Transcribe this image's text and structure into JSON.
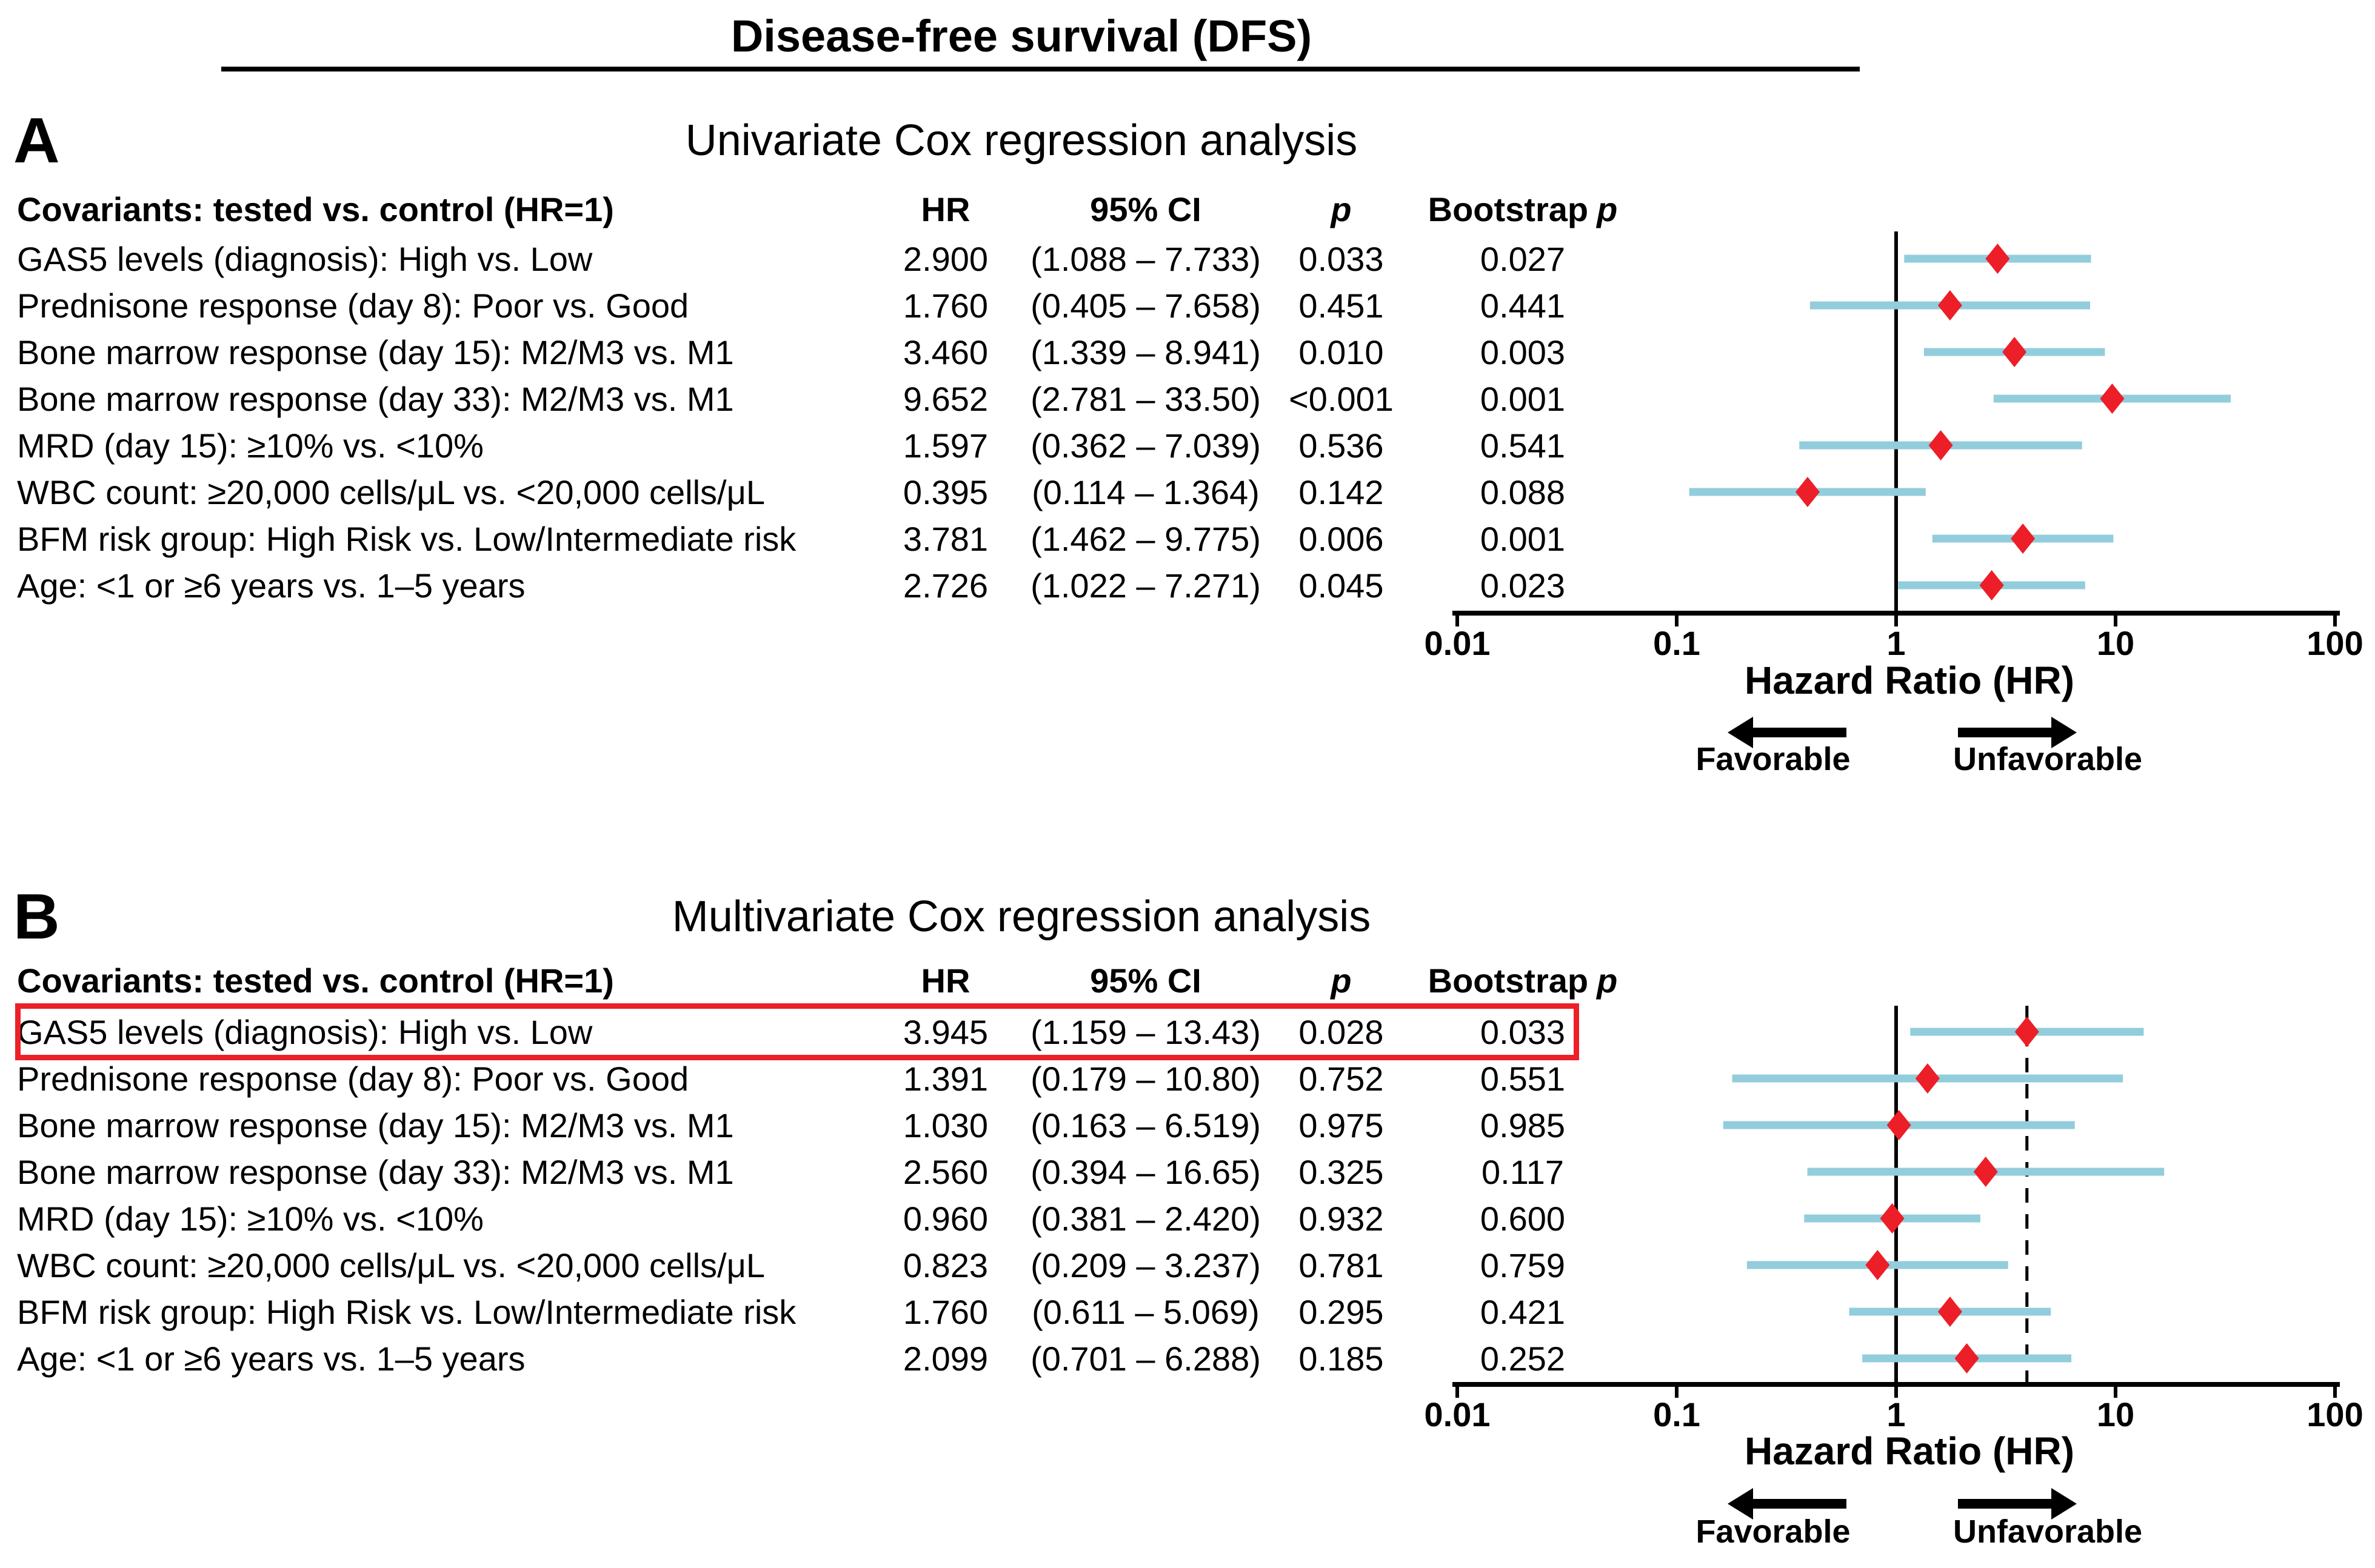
{
  "figure_title": "Disease-free survival (DFS)",
  "table_columns": {
    "covariate": "Covariants: tested vs. control (HR=1)",
    "hr": "HR",
    "ci": "95% CI",
    "p": "p",
    "bootstrap": "Bootstrap",
    "bootstrap_p": "p"
  },
  "axis": {
    "tick_labels": [
      "0.01",
      "0.1",
      "1",
      "10",
      "100"
    ],
    "title": "Hazard Ratio (HR)",
    "favorable_label": "Favorable",
    "unfavorable_label": "Unfavorable"
  },
  "colors": {
    "marker": "#EC1E27",
    "ci_bar": "#92CDDC",
    "highlight_box": "#EC2027",
    "reference_line": "#000000",
    "axis": "#000000",
    "text": "#000000",
    "background": "#FFFFFF"
  },
  "panels": [
    {
      "label": "A",
      "heading": "Univariate Cox regression analysis",
      "highlighted_row_index": null,
      "rows": [
        {
          "covariate": "GAS5 levels (diagnosis): High vs. Low",
          "hr": "2.900",
          "ci": "(1.088 – 7.733)",
          "p": "0.033",
          "bootstrap_p": "0.027"
        },
        {
          "covariate": "Prednisone response (day 8): Poor vs. Good",
          "hr": "1.760",
          "ci": "(0.405 – 7.658)",
          "p": "0.451",
          "bootstrap_p": "0.441"
        },
        {
          "covariate": "Bone marrow response (day 15): M2/M3 vs. M1",
          "hr": "3.460",
          "ci": "(1.339 – 8.941)",
          "p": "0.010",
          "bootstrap_p": "0.003"
        },
        {
          "covariate": "Bone marrow response (day 33): M2/M3 vs. M1",
          "hr": "9.652",
          "ci": "(2.781 – 33.50)",
          "p": "<0.001",
          "bootstrap_p": "0.001"
        },
        {
          "covariate": "MRD (day 15): ≥10% vs. <10%",
          "hr": "1.597",
          "ci": "(0.362 – 7.039)",
          "p": "0.536",
          "bootstrap_p": "0.541"
        },
        {
          "covariate": "WBC count: ≥20,000 cells/μL vs. <20,000 cells/μL",
          "hr": "0.395",
          "ci": "(0.114 – 1.364)",
          "p": "0.142",
          "bootstrap_p": "0.088"
        },
        {
          "covariate": "BFM risk group: High Risk vs. Low/Intermediate risk",
          "hr": "3.781",
          "ci": "(1.462 – 9.775)",
          "p": "0.006",
          "bootstrap_p": "0.001"
        },
        {
          "covariate": "Age: <1 or ≥6 years vs. 1–5 years",
          "hr": "2.726",
          "ci": "(1.022 – 7.271)",
          "p": "0.045",
          "bootstrap_p": "0.023"
        }
      ]
    },
    {
      "label": "B",
      "heading": "Multivariate Cox regression analysis",
      "highlighted_row_index": 0,
      "rows": [
        {
          "covariate": "GAS5 levels (diagnosis): High vs. Low",
          "hr": "3.945",
          "ci": "(1.159 – 13.43)",
          "p": "0.028",
          "bootstrap_p": "0.033"
        },
        {
          "covariate": "Prednisone response (day 8): Poor vs. Good",
          "hr": "1.391",
          "ci": "(0.179 – 10.80)",
          "p": "0.752",
          "bootstrap_p": "0.551"
        },
        {
          "covariate": "Bone marrow response (day 15): M2/M3 vs. M1",
          "hr": "1.030",
          "ci": "(0.163 – 6.519)",
          "p": "0.975",
          "bootstrap_p": "0.985"
        },
        {
          "covariate": "Bone marrow response (day 33): M2/M3 vs. M1",
          "hr": "2.560",
          "ci": "(0.394 – 16.65)",
          "p": "0.325",
          "bootstrap_p": "0.117"
        },
        {
          "covariate": "MRD (day 15): ≥10% vs. <10%",
          "hr": "0.960",
          "ci": "(0.381 – 2.420)",
          "p": "0.932",
          "bootstrap_p": "0.600"
        },
        {
          "covariate": "WBC count: ≥20,000 cells/μL vs. <20,000 cells/μL",
          "hr": "0.823",
          "ci": "(0.209 – 3.237)",
          "p": "0.781",
          "bootstrap_p": "0.759"
        },
        {
          "covariate": "BFM risk group: High Risk vs. Low/Intermediate risk",
          "hr": "1.760",
          "ci": "(0.611 – 5.069)",
          "p": "0.295",
          "bootstrap_p": "0.421"
        },
        {
          "covariate": "Age: <1 or ≥6 years vs. 1–5 years",
          "hr": "2.099",
          "ci": "(0.701 – 6.288)",
          "p": "0.185",
          "bootstrap_p": "0.252"
        }
      ]
    }
  ],
  "chart_data": [
    {
      "type": "scatter",
      "subtype": "forest-plot",
      "title": "Univariate Cox regression analysis",
      "xlabel": "Hazard Ratio (HR)",
      "x_scale": "log",
      "xlim": [
        0.01,
        100
      ],
      "x_ticks": [
        0.01,
        0.1,
        1,
        10,
        100
      ],
      "grid": false,
      "reference_lines": [
        {
          "x": 1,
          "style": "solid"
        }
      ],
      "direction_annotations": [
        {
          "label": "Favorable",
          "side": "left"
        },
        {
          "label": "Unfavorable",
          "side": "right"
        }
      ],
      "categories": [
        "GAS5 levels (diagnosis): High vs. Low",
        "Prednisone response (day 8): Poor vs. Good",
        "Bone marrow response (day 15): M2/M3 vs. M1",
        "Bone marrow response (day 33): M2/M3 vs. M1",
        "MRD (day 15): ≥10% vs. <10%",
        "WBC count: ≥20,000 cells/μL vs. <20,000 cells/μL",
        "BFM risk group: High Risk vs. Low/Intermediate risk",
        "Age: <1 or ≥6 years vs. 1–5 years"
      ],
      "series": [
        {
          "name": "HR",
          "values": [
            2.9,
            1.76,
            3.46,
            9.652,
            1.597,
            0.395,
            3.781,
            2.726
          ]
        },
        {
          "name": "CI_lower",
          "values": [
            1.088,
            0.405,
            1.339,
            2.781,
            0.362,
            0.114,
            1.462,
            1.022
          ]
        },
        {
          "name": "CI_upper",
          "values": [
            7.733,
            7.658,
            8.941,
            33.5,
            7.039,
            1.364,
            9.775,
            7.271
          ]
        }
      ],
      "p_values": [
        "0.033",
        "0.451",
        "0.010",
        "<0.001",
        "0.536",
        "0.142",
        "0.006",
        "0.045"
      ],
      "bootstrap_p_values": [
        "0.027",
        "0.441",
        "0.003",
        "0.001",
        "0.541",
        "0.088",
        "0.001",
        "0.023"
      ]
    },
    {
      "type": "scatter",
      "subtype": "forest-plot",
      "title": "Multivariate Cox regression analysis",
      "xlabel": "Hazard Ratio (HR)",
      "x_scale": "log",
      "xlim": [
        0.01,
        100
      ],
      "x_ticks": [
        0.01,
        0.1,
        1,
        10,
        100
      ],
      "grid": false,
      "highlighted_category_index": 0,
      "reference_lines": [
        {
          "x": 1,
          "style": "solid"
        },
        {
          "x": 3.945,
          "style": "dashed"
        }
      ],
      "direction_annotations": [
        {
          "label": "Favorable",
          "side": "left"
        },
        {
          "label": "Unfavorable",
          "side": "right"
        }
      ],
      "categories": [
        "GAS5 levels (diagnosis): High vs. Low",
        "Prednisone response (day 8): Poor vs. Good",
        "Bone marrow response (day 15): M2/M3 vs. M1",
        "Bone marrow response (day 33): M2/M3 vs. M1",
        "MRD (day 15): ≥10% vs. <10%",
        "WBC count: ≥20,000 cells/μL vs. <20,000 cells/μL",
        "BFM risk group: High Risk vs. Low/Intermediate risk",
        "Age: <1 or ≥6 years vs. 1–5 years"
      ],
      "series": [
        {
          "name": "HR",
          "values": [
            3.945,
            1.391,
            1.03,
            2.56,
            0.96,
            0.823,
            1.76,
            2.099
          ]
        },
        {
          "name": "CI_lower",
          "values": [
            1.159,
            0.179,
            0.163,
            0.394,
            0.381,
            0.209,
            0.611,
            0.701
          ]
        },
        {
          "name": "CI_upper",
          "values": [
            13.43,
            10.8,
            6.519,
            16.65,
            2.42,
            3.237,
            5.069,
            6.288
          ]
        }
      ],
      "p_values": [
        "0.028",
        "0.752",
        "0.975",
        "0.325",
        "0.932",
        "0.781",
        "0.295",
        "0.185"
      ],
      "bootstrap_p_values": [
        "0.033",
        "0.551",
        "0.985",
        "0.117",
        "0.600",
        "0.759",
        "0.421",
        "0.252"
      ]
    }
  ]
}
